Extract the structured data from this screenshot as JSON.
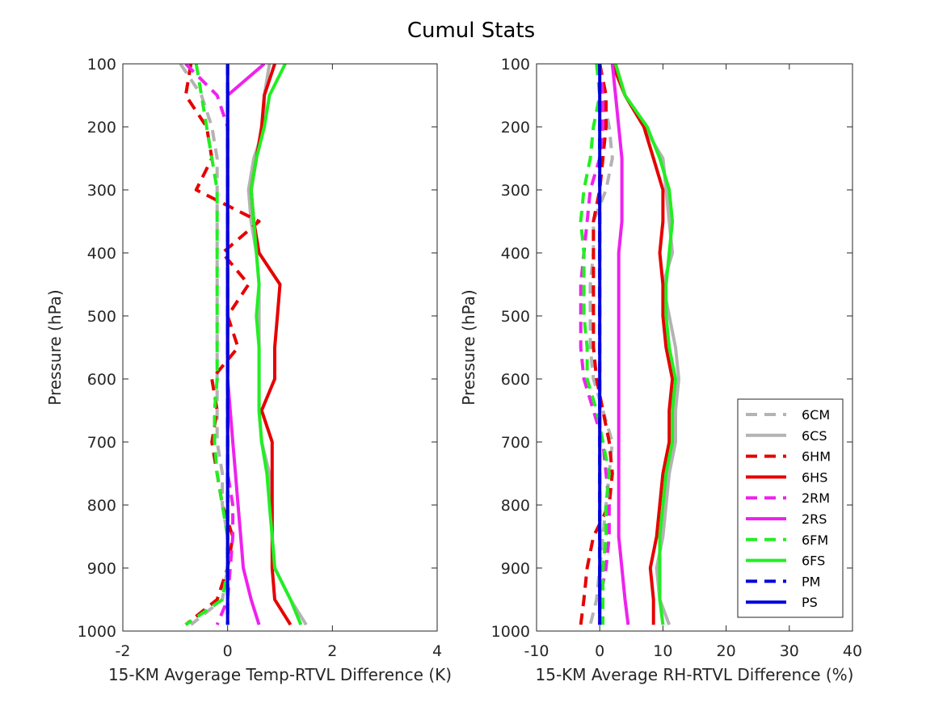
{
  "chart_data": {
    "title": "Cumul Stats",
    "ylabel": "Pressure (hPa)",
    "y_ticks": [
      100,
      200,
      300,
      400,
      500,
      600,
      700,
      800,
      900,
      1000
    ],
    "ylim": [
      100,
      1000
    ],
    "y_reversed": true,
    "legend_placement": "bottom-right of right panel",
    "series_styles": [
      {
        "name": "6CM",
        "color": "#b3b3b3",
        "dashed": true
      },
      {
        "name": "6CS",
        "color": "#b3b3b3",
        "dashed": false
      },
      {
        "name": "6HM",
        "color": "#e60000",
        "dashed": true
      },
      {
        "name": "6HS",
        "color": "#e60000",
        "dashed": false
      },
      {
        "name": "2RM",
        "color": "#ee22ee",
        "dashed": true
      },
      {
        "name": "2RS",
        "color": "#ee22ee",
        "dashed": false
      },
      {
        "name": "6FM",
        "color": "#22ee22",
        "dashed": true
      },
      {
        "name": "6FS",
        "color": "#22ee22",
        "dashed": false
      },
      {
        "name": "PM",
        "color": "#0000dd",
        "dashed": true
      },
      {
        "name": "PS",
        "color": "#0000dd",
        "dashed": false
      }
    ],
    "panels": [
      {
        "type": "line",
        "xlabel": "15-KM Avgerage Temp-RTVL Difference (K)",
        "xlim": [
          -2,
          4
        ],
        "x_ticks": [
          -2,
          0,
          2,
          4
        ],
        "pressure": [
          100,
          150,
          200,
          250,
          300,
          350,
          400,
          450,
          500,
          550,
          600,
          650,
          700,
          750,
          800,
          850,
          900,
          950,
          990
        ],
        "series": [
          {
            "name": "6CM",
            "values": [
              -0.9,
              -0.5,
              -0.3,
              -0.2,
              -0.2,
              -0.2,
              -0.2,
              -0.2,
              -0.2,
              -0.2,
              -0.2,
              -0.2,
              -0.2,
              -0.1,
              -0.1,
              0.0,
              0.0,
              -0.1,
              -0.7
            ]
          },
          {
            "name": "6CS",
            "values": [
              0.8,
              0.7,
              0.7,
              0.5,
              0.4,
              0.45,
              0.55,
              0.6,
              0.6,
              0.6,
              0.6,
              0.6,
              0.65,
              0.8,
              0.85,
              0.85,
              0.9,
              1.2,
              1.5
            ]
          },
          {
            "name": "6HM",
            "values": [
              -0.7,
              -0.8,
              -0.4,
              -0.3,
              -0.6,
              0.6,
              -0.1,
              0.4,
              0.0,
              0.2,
              -0.3,
              -0.2,
              -0.3,
              -0.2,
              -0.1,
              0.1,
              0.0,
              -0.2,
              -0.8
            ]
          },
          {
            "name": "6HS",
            "values": [
              0.9,
              0.7,
              0.65,
              0.55,
              0.45,
              0.5,
              0.6,
              1.0,
              0.95,
              0.9,
              0.9,
              0.65,
              0.85,
              0.85,
              0.85,
              0.85,
              0.85,
              0.9,
              1.2
            ]
          },
          {
            "name": "2RM",
            "values": [
              -0.8,
              -0.2,
              0.0,
              0.0,
              0.0,
              0.0,
              0.0,
              0.0,
              0.0,
              0.0,
              0.0,
              0.0,
              0.0,
              0.0,
              0.1,
              0.1,
              0.05,
              0.0,
              -0.2
            ]
          },
          {
            "name": "2RS",
            "values": [
              0.7,
              0.0,
              0.0,
              0.0,
              0.0,
              0.0,
              0.0,
              0.0,
              0.0,
              0.0,
              0.0,
              0.05,
              0.1,
              0.15,
              0.2,
              0.25,
              0.3,
              0.45,
              0.6
            ]
          },
          {
            "name": "6FM",
            "values": [
              -0.6,
              -0.5,
              -0.4,
              -0.3,
              -0.2,
              -0.2,
              -0.2,
              -0.2,
              -0.2,
              -0.2,
              -0.2,
              -0.25,
              -0.25,
              -0.2,
              -0.1,
              0.0,
              0.0,
              -0.1,
              -0.8
            ]
          },
          {
            "name": "6FS",
            "values": [
              1.1,
              0.8,
              0.7,
              0.55,
              0.45,
              0.5,
              0.55,
              0.6,
              0.55,
              0.6,
              0.6,
              0.6,
              0.65,
              0.75,
              0.8,
              0.85,
              0.9,
              1.2,
              1.4
            ]
          },
          {
            "name": "PM",
            "values": [
              0.0,
              0.0,
              0.0,
              0.0,
              0.0,
              0.0,
              0.0,
              0.0,
              0.0,
              0.0,
              0.0,
              0.0,
              0.0,
              0.0,
              0.0,
              0.0,
              0.0,
              0.0,
              0.0
            ]
          },
          {
            "name": "PS",
            "values": [
              0.0,
              0.0,
              0.0,
              0.0,
              0.0,
              0.0,
              0.0,
              0.0,
              0.0,
              0.0,
              0.0,
              0.0,
              0.0,
              0.0,
              0.0,
              0.0,
              0.0,
              0.0,
              0.0
            ]
          }
        ]
      },
      {
        "type": "line",
        "xlabel": "15-KM Average RH-RTVL Difference (%)",
        "xlim": [
          -10,
          40
        ],
        "x_ticks": [
          -10,
          0,
          10,
          20,
          30,
          40
        ],
        "pressure": [
          100,
          150,
          200,
          250,
          300,
          350,
          400,
          450,
          500,
          550,
          600,
          650,
          700,
          750,
          800,
          850,
          900,
          950,
          990
        ],
        "series": [
          {
            "name": "6CM",
            "values": [
              -0.5,
              0.5,
              1.5,
              2.0,
              1.0,
              -1.0,
              -1.0,
              -1.5,
              -1.5,
              -1.5,
              -1.0,
              0.5,
              2.0,
              1.5,
              1.0,
              0.5,
              0.0,
              -0.5,
              -1.5
            ]
          },
          {
            "name": "6CS",
            "values": [
              2.5,
              4.0,
              7.0,
              10.0,
              10.5,
              11.0,
              11.5,
              10.0,
              11.0,
              12.0,
              12.5,
              12.0,
              12.0,
              11.0,
              10.5,
              10.0,
              9.0,
              9.5,
              11.0
            ]
          },
          {
            "name": "6HM",
            "values": [
              0.0,
              1.0,
              1.0,
              0.5,
              0.0,
              -1.0,
              -1.0,
              -1.0,
              -1.0,
              -1.0,
              -0.5,
              0.5,
              1.5,
              2.0,
              1.5,
              -1.0,
              -2.0,
              -2.5,
              -3.0
            ]
          },
          {
            "name": "6HS",
            "values": [
              2.0,
              4.0,
              7.0,
              8.5,
              10.0,
              10.0,
              9.5,
              10.0,
              10.0,
              10.5,
              11.5,
              11.0,
              11.0,
              10.0,
              9.5,
              9.0,
              8.0,
              8.5,
              8.5
            ]
          },
          {
            "name": "2RM",
            "values": [
              0.0,
              0.5,
              0.5,
              0.0,
              -1.5,
              -2.0,
              -2.5,
              -3.0,
              -3.0,
              -3.0,
              -2.5,
              -1.0,
              0.5,
              1.0,
              1.5,
              1.5,
              1.0,
              0.0,
              0.0
            ]
          },
          {
            "name": "2RS",
            "values": [
              2.0,
              2.5,
              3.0,
              3.5,
              3.5,
              3.5,
              3.0,
              3.0,
              3.0,
              3.0,
              3.0,
              3.0,
              3.0,
              3.0,
              3.0,
              3.0,
              3.5,
              4.0,
              4.5
            ]
          },
          {
            "name": "6FM",
            "values": [
              -0.5,
              0.0,
              -1.0,
              -1.5,
              -2.5,
              -3.0,
              -2.5,
              -2.5,
              -2.5,
              -2.0,
              -2.0,
              -0.5,
              0.5,
              1.5,
              1.0,
              1.0,
              0.5,
              0.5,
              0.5
            ]
          },
          {
            "name": "6FS",
            "values": [
              2.5,
              4.0,
              7.5,
              9.5,
              11.0,
              11.5,
              11.0,
              10.5,
              10.5,
              11.0,
              12.0,
              11.5,
              11.5,
              10.5,
              10.0,
              9.5,
              9.5,
              9.5,
              10.0
            ]
          },
          {
            "name": "PM",
            "values": [
              0.0,
              0.0,
              0.0,
              0.0,
              0.0,
              0.0,
              0.0,
              0.0,
              0.0,
              0.0,
              0.0,
              0.0,
              0.0,
              0.0,
              0.0,
              0.0,
              0.0,
              0.0,
              0.0
            ]
          },
          {
            "name": "PS",
            "values": [
              0.0,
              0.0,
              0.0,
              0.0,
              0.0,
              0.0,
              0.0,
              0.0,
              0.0,
              0.0,
              0.0,
              0.0,
              0.0,
              0.0,
              0.0,
              0.0,
              0.0,
              0.0,
              0.0
            ]
          }
        ]
      }
    ]
  }
}
